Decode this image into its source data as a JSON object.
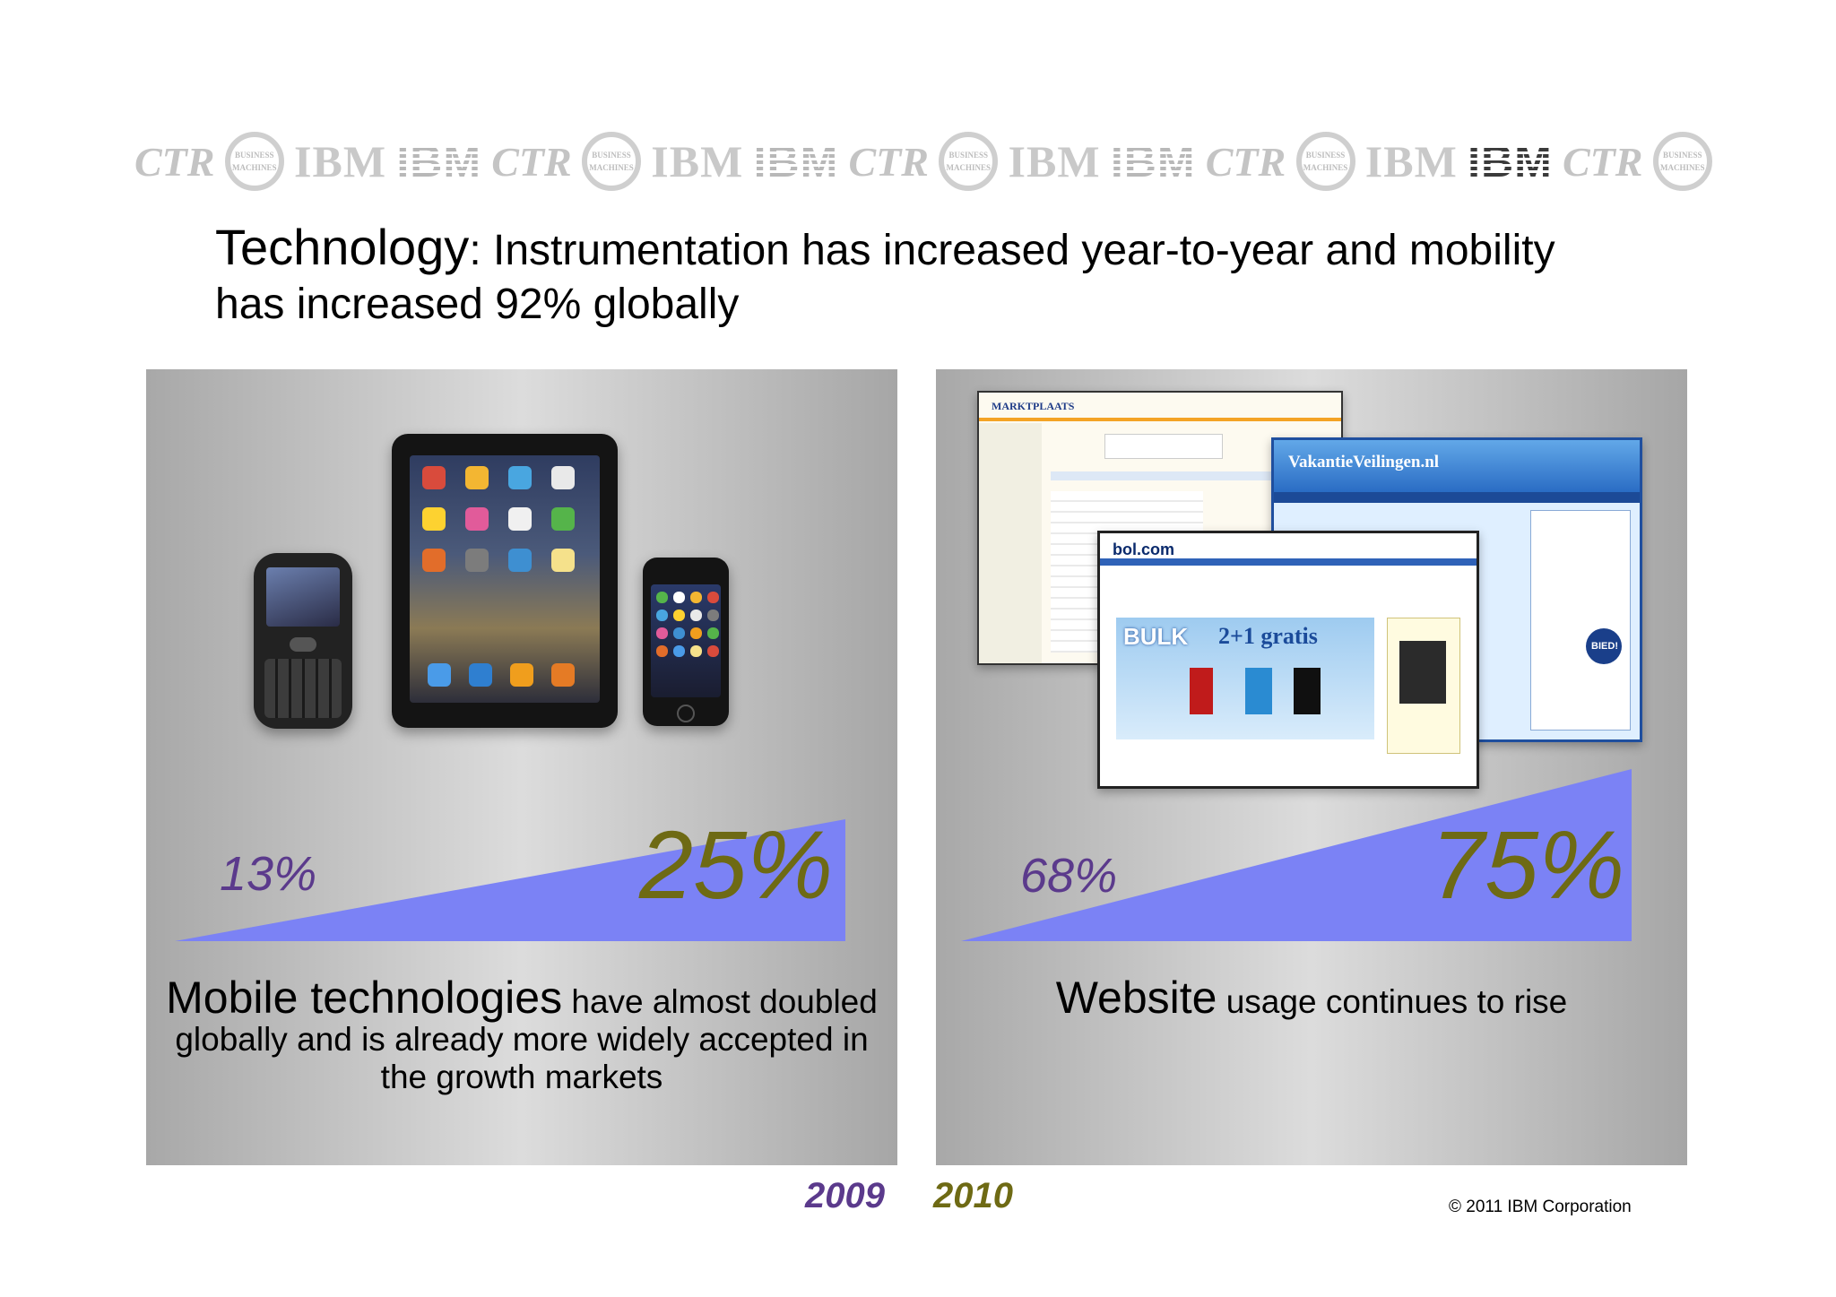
{
  "logo_strip": {
    "items": [
      "ctr-logo",
      "ibm-seal",
      "IBM",
      "IBM",
      "ctr-logo",
      "ibm-seal",
      "IBM",
      "IBM",
      "ctr-logo",
      "ibm-seal",
      "IBM",
      "IBM",
      "ctr-logo",
      "ibm-seal",
      "IBM",
      "IBM",
      "ctr-logo",
      "ibm-seal"
    ],
    "seal_text": "BUSINESS MACHINES",
    "ibm_text": "IBM",
    "ctr_text": "CTR"
  },
  "title": {
    "lead": "Technology",
    "rest": ": Instrumentation has increased year-to-year and mobility has increased 92% globally"
  },
  "left_panel": {
    "value_2009": "13%",
    "value_2010": "25%",
    "caption_big": "Mobile technologies",
    "caption_rest": " have almost doubled globally and is already more widely accepted in the growth markets",
    "image_icons": [
      "smartphone-icon",
      "tablet-icon",
      "phone-icon"
    ]
  },
  "right_panel": {
    "value_2009": "68%",
    "value_2010": "75%",
    "caption_big": "Website",
    "caption_rest": " usage continues to rise",
    "shot1_logo": "MARKTPLAATS",
    "shot2_logo": "VakantieVeilingen.nl",
    "shot3_logo": "bol.com",
    "shot3_promo": "2+1 gratis",
    "shot3_bulk": "BULK",
    "shot2_bid": "BIED!"
  },
  "legend": {
    "year_2009": "2009",
    "year_2010": "2010",
    "color_2009": "#5b3a8c",
    "color_2010": "#6e6a14"
  },
  "wedge_color": "#7b82f5",
  "copyright": "© 2011 IBM Corporation"
}
